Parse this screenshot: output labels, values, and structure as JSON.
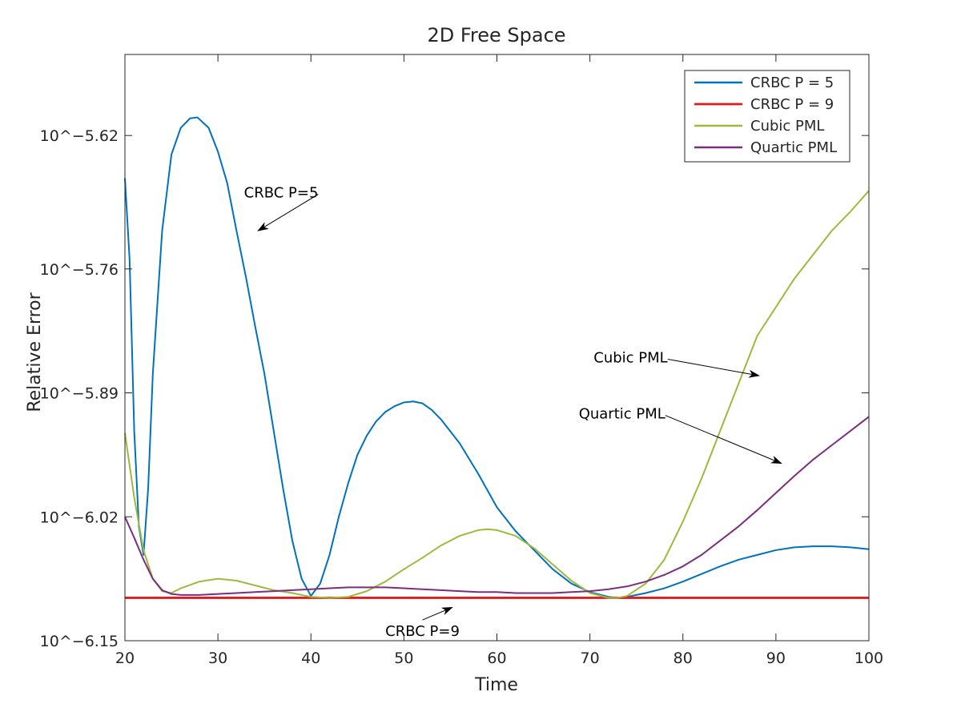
{
  "chart_data": {
    "type": "line",
    "title": "2D Free Space",
    "xlabel": "Time",
    "ylabel": "Relative Error",
    "xlim": [
      20,
      100
    ],
    "ylim": [
      -6.15,
      -5.535
    ],
    "y_scale": "log10",
    "x_ticks": [
      20,
      30,
      40,
      50,
      60,
      70,
      80,
      90,
      100
    ],
    "y_ticks": [
      {
        "value": -6.15,
        "label": "10^−6.15"
      },
      {
        "value": -6.02,
        "label": "10^−6.02"
      },
      {
        "value": -5.89,
        "label": "10^−5.89"
      },
      {
        "value": -5.76,
        "label": "10^−5.76"
      },
      {
        "value": -5.62,
        "label": "10^−5.62"
      }
    ],
    "grid": false,
    "legend_position": "top-right",
    "series": [
      {
        "name": "CRBC P = 5",
        "color": "#0072BD",
        "points": [
          [
            20,
            -5.665
          ],
          [
            20.5,
            -5.75
          ],
          [
            21,
            -5.93
          ],
          [
            21.5,
            -6.03
          ],
          [
            22,
            -6.06
          ],
          [
            22.5,
            -5.99
          ],
          [
            23,
            -5.87
          ],
          [
            24,
            -5.72
          ],
          [
            25,
            -5.64
          ],
          [
            26,
            -5.612
          ],
          [
            27,
            -5.602
          ],
          [
            27.8,
            -5.601
          ],
          [
            29,
            -5.612
          ],
          [
            30,
            -5.637
          ],
          [
            31,
            -5.67
          ],
          [
            32,
            -5.72
          ],
          [
            33,
            -5.768
          ],
          [
            34,
            -5.82
          ],
          [
            35,
            -5.87
          ],
          [
            36,
            -5.93
          ],
          [
            37,
            -5.99
          ],
          [
            38,
            -6.045
          ],
          [
            39,
            -6.085
          ],
          [
            40,
            -6.103
          ],
          [
            41,
            -6.09
          ],
          [
            42,
            -6.06
          ],
          [
            43,
            -6.02
          ],
          [
            44,
            -5.985
          ],
          [
            45,
            -5.955
          ],
          [
            46,
            -5.935
          ],
          [
            47,
            -5.92
          ],
          [
            48,
            -5.91
          ],
          [
            49,
            -5.904
          ],
          [
            50,
            -5.9
          ],
          [
            51,
            -5.899
          ],
          [
            52,
            -5.901
          ],
          [
            53,
            -5.908
          ],
          [
            54,
            -5.918
          ],
          [
            56,
            -5.943
          ],
          [
            58,
            -5.975
          ],
          [
            60,
            -6.01
          ],
          [
            62,
            -6.035
          ],
          [
            64,
            -6.055
          ],
          [
            66,
            -6.075
          ],
          [
            68,
            -6.09
          ],
          [
            70,
            -6.099
          ],
          [
            72,
            -6.104
          ],
          [
            73,
            -6.105
          ],
          [
            74,
            -6.104
          ],
          [
            76,
            -6.1
          ],
          [
            78,
            -6.095
          ],
          [
            80,
            -6.088
          ],
          [
            82,
            -6.08
          ],
          [
            84,
            -6.072
          ],
          [
            86,
            -6.065
          ],
          [
            88,
            -6.06
          ],
          [
            90,
            -6.055
          ],
          [
            92,
            -6.052
          ],
          [
            94,
            -6.051
          ],
          [
            96,
            -6.051
          ],
          [
            98,
            -6.052
          ],
          [
            100,
            -6.054
          ]
        ]
      },
      {
        "name": "CRBC P = 9",
        "color": "#E41A1C",
        "points": [
          [
            20,
            -6.105
          ],
          [
            100,
            -6.105
          ]
        ]
      },
      {
        "name": "Cubic PML",
        "color": "#9BBB3C",
        "points": [
          [
            20,
            -5.932
          ],
          [
            21,
            -6.0
          ],
          [
            22,
            -6.055
          ],
          [
            23,
            -6.085
          ],
          [
            24,
            -6.098
          ],
          [
            25,
            -6.1
          ],
          [
            26,
            -6.095
          ],
          [
            28,
            -6.088
          ],
          [
            30,
            -6.085
          ],
          [
            32,
            -6.087
          ],
          [
            34,
            -6.092
          ],
          [
            36,
            -6.097
          ],
          [
            38,
            -6.1
          ],
          [
            40,
            -6.104
          ],
          [
            42,
            -6.105
          ],
          [
            44,
            -6.104
          ],
          [
            46,
            -6.098
          ],
          [
            48,
            -6.088
          ],
          [
            50,
            -6.075
          ],
          [
            52,
            -6.063
          ],
          [
            54,
            -6.05
          ],
          [
            56,
            -6.04
          ],
          [
            58,
            -6.034
          ],
          [
            59,
            -6.033
          ],
          [
            60,
            -6.034
          ],
          [
            62,
            -6.04
          ],
          [
            64,
            -6.053
          ],
          [
            66,
            -6.07
          ],
          [
            68,
            -6.087
          ],
          [
            70,
            -6.1
          ],
          [
            72,
            -6.105
          ],
          [
            73,
            -6.105
          ],
          [
            74,
            -6.103
          ],
          [
            76,
            -6.09
          ],
          [
            78,
            -6.065
          ],
          [
            80,
            -6.025
          ],
          [
            82,
            -5.98
          ],
          [
            84,
            -5.93
          ],
          [
            86,
            -5.88
          ],
          [
            88,
            -5.83
          ],
          [
            90,
            -5.8
          ],
          [
            92,
            -5.77
          ],
          [
            94,
            -5.745
          ],
          [
            96,
            -5.72
          ],
          [
            98,
            -5.7
          ],
          [
            100,
            -5.678
          ]
        ]
      },
      {
        "name": "Quartic PML",
        "color": "#7B2D7E",
        "points": [
          [
            20,
            -6.02
          ],
          [
            21,
            -6.042
          ],
          [
            22,
            -6.065
          ],
          [
            23,
            -6.085
          ],
          [
            24,
            -6.097
          ],
          [
            25,
            -6.101
          ],
          [
            26,
            -6.102
          ],
          [
            28,
            -6.102
          ],
          [
            30,
            -6.101
          ],
          [
            32,
            -6.1
          ],
          [
            34,
            -6.099
          ],
          [
            36,
            -6.098
          ],
          [
            38,
            -6.097
          ],
          [
            40,
            -6.096
          ],
          [
            42,
            -6.095
          ],
          [
            44,
            -6.094
          ],
          [
            46,
            -6.094
          ],
          [
            48,
            -6.094
          ],
          [
            50,
            -6.095
          ],
          [
            52,
            -6.096
          ],
          [
            54,
            -6.097
          ],
          [
            56,
            -6.098
          ],
          [
            58,
            -6.099
          ],
          [
            60,
            -6.099
          ],
          [
            62,
            -6.1
          ],
          [
            64,
            -6.1
          ],
          [
            66,
            -6.1
          ],
          [
            68,
            -6.099
          ],
          [
            70,
            -6.098
          ],
          [
            72,
            -6.096
          ],
          [
            74,
            -6.093
          ],
          [
            76,
            -6.088
          ],
          [
            78,
            -6.081
          ],
          [
            80,
            -6.072
          ],
          [
            82,
            -6.06
          ],
          [
            84,
            -6.045
          ],
          [
            86,
            -6.03
          ],
          [
            88,
            -6.013
          ],
          [
            90,
            -5.995
          ],
          [
            92,
            -5.977
          ],
          [
            94,
            -5.96
          ],
          [
            96,
            -5.945
          ],
          [
            98,
            -5.93
          ],
          [
            100,
            -5.915
          ]
        ]
      }
    ],
    "annotations": [
      {
        "text": "CRBC P=5",
        "label_at": [
          32.8,
          -5.685
        ],
        "arrow_to": [
          34.3,
          -5.72
        ]
      },
      {
        "text": "CRBC P=9",
        "label_at": [
          48.0,
          -6.145
        ],
        "arrow_to": [
          55.2,
          -6.115
        ]
      },
      {
        "text": "Cubic PML",
        "label_at": [
          70.4,
          -5.858
        ],
        "arrow_to": [
          88.2,
          -5.872
        ]
      },
      {
        "text": "Quartic PML",
        "label_at": [
          68.8,
          -5.917
        ],
        "arrow_to": [
          90.6,
          -5.964
        ]
      }
    ]
  }
}
